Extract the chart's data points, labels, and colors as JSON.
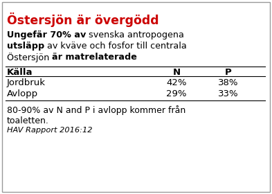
{
  "title": "Östersjön är övergödd",
  "title_color": "#CC0000",
  "table_headers": [
    "Källa",
    "N",
    "P"
  ],
  "table_rows": [
    [
      "Jordbruk",
      "42%",
      "38%"
    ],
    [
      "Avlopp",
      "29%",
      "33%"
    ]
  ],
  "footer_line1": "80-90% av N and P i avlopp kommer från",
  "footer_line2": "toaletten.",
  "citation": "HAV Rapport 2016:12",
  "bg_color": "#FFFFFF",
  "border_color": "#999999",
  "text_color": "#000000",
  "figsize": [
    3.93,
    2.8
  ],
  "dpi": 100
}
